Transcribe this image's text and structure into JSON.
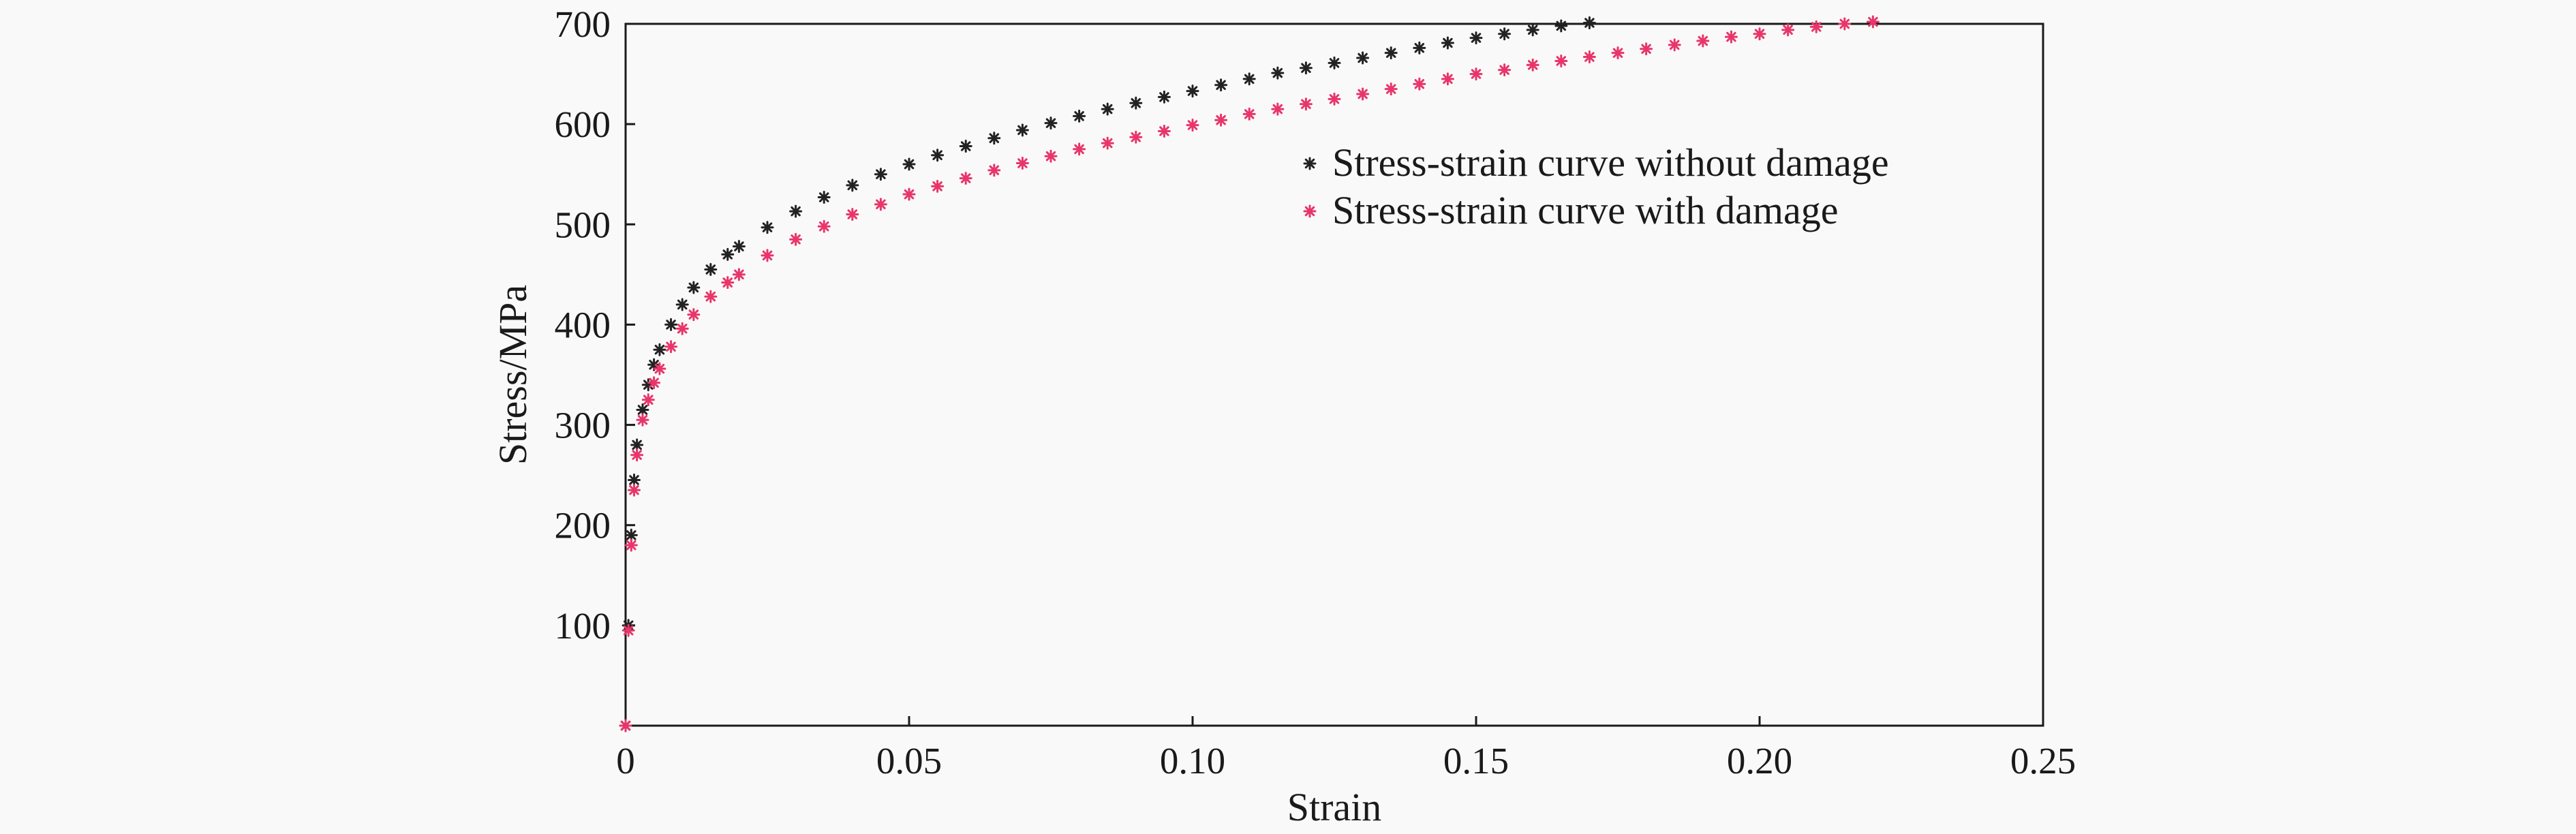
{
  "chart_data": {
    "type": "scatter",
    "title": "",
    "xlabel": "Strain",
    "ylabel": "Stress/MPa",
    "xlim": [
      0,
      0.25
    ],
    "ylim": [
      0,
      700
    ],
    "x_ticks": [
      0,
      0.05,
      0.1,
      0.15,
      0.2,
      0.25
    ],
    "x_tick_labels": [
      "0",
      "0.05",
      "0.10",
      "0.15",
      "0.20",
      "0.25"
    ],
    "y_ticks": [
      100,
      200,
      300,
      400,
      500,
      600,
      700
    ],
    "y_tick_labels": [
      "100",
      "200",
      "300",
      "400",
      "500",
      "600",
      "700"
    ],
    "grid": false,
    "legend_position": "top-right",
    "series": [
      {
        "name": "Stress-strain curve without damage",
        "color": "#222222",
        "marker": "asterisk",
        "x": [
          0,
          0.0005,
          0.001,
          0.0015,
          0.002,
          0.003,
          0.004,
          0.005,
          0.006,
          0.008,
          0.01,
          0.012,
          0.015,
          0.018,
          0.02,
          0.025,
          0.03,
          0.035,
          0.04,
          0.045,
          0.05,
          0.055,
          0.06,
          0.065,
          0.07,
          0.075,
          0.08,
          0.085,
          0.09,
          0.095,
          0.1,
          0.105,
          0.11,
          0.115,
          0.12,
          0.125,
          0.13,
          0.135,
          0.14,
          0.145,
          0.15,
          0.155,
          0.16,
          0.165,
          0.17
        ],
        "y": [
          0,
          100,
          190,
          245,
          280,
          315,
          340,
          360,
          375,
          400,
          420,
          437,
          455,
          470,
          478,
          497,
          513,
          527,
          539,
          550,
          560,
          569,
          578,
          586,
          594,
          601,
          608,
          615,
          621,
          627,
          633,
          639,
          645,
          651,
          656,
          661,
          666,
          671,
          676,
          681,
          686,
          690,
          694,
          698,
          701
        ]
      },
      {
        "name": "Stress-strain curve with damage",
        "color": "#e8356a",
        "marker": "asterisk",
        "x": [
          0,
          0.0005,
          0.001,
          0.0015,
          0.002,
          0.003,
          0.004,
          0.005,
          0.006,
          0.008,
          0.01,
          0.012,
          0.015,
          0.018,
          0.02,
          0.025,
          0.03,
          0.035,
          0.04,
          0.045,
          0.05,
          0.055,
          0.06,
          0.065,
          0.07,
          0.075,
          0.08,
          0.085,
          0.09,
          0.095,
          0.1,
          0.105,
          0.11,
          0.115,
          0.12,
          0.125,
          0.13,
          0.135,
          0.14,
          0.145,
          0.15,
          0.155,
          0.16,
          0.165,
          0.17,
          0.175,
          0.18,
          0.185,
          0.19,
          0.195,
          0.2,
          0.205,
          0.21,
          0.215,
          0.22
        ],
        "y": [
          0,
          95,
          180,
          235,
          270,
          305,
          325,
          342,
          356,
          378,
          396,
          410,
          428,
          442,
          450,
          469,
          485,
          498,
          510,
          520,
          530,
          538,
          546,
          554,
          561,
          568,
          575,
          581,
          587,
          593,
          599,
          604,
          610,
          615,
          620,
          625,
          630,
          635,
          640,
          645,
          650,
          654,
          659,
          663,
          667,
          671,
          675,
          679,
          683,
          687,
          690,
          694,
          697,
          700,
          702
        ]
      }
    ]
  }
}
